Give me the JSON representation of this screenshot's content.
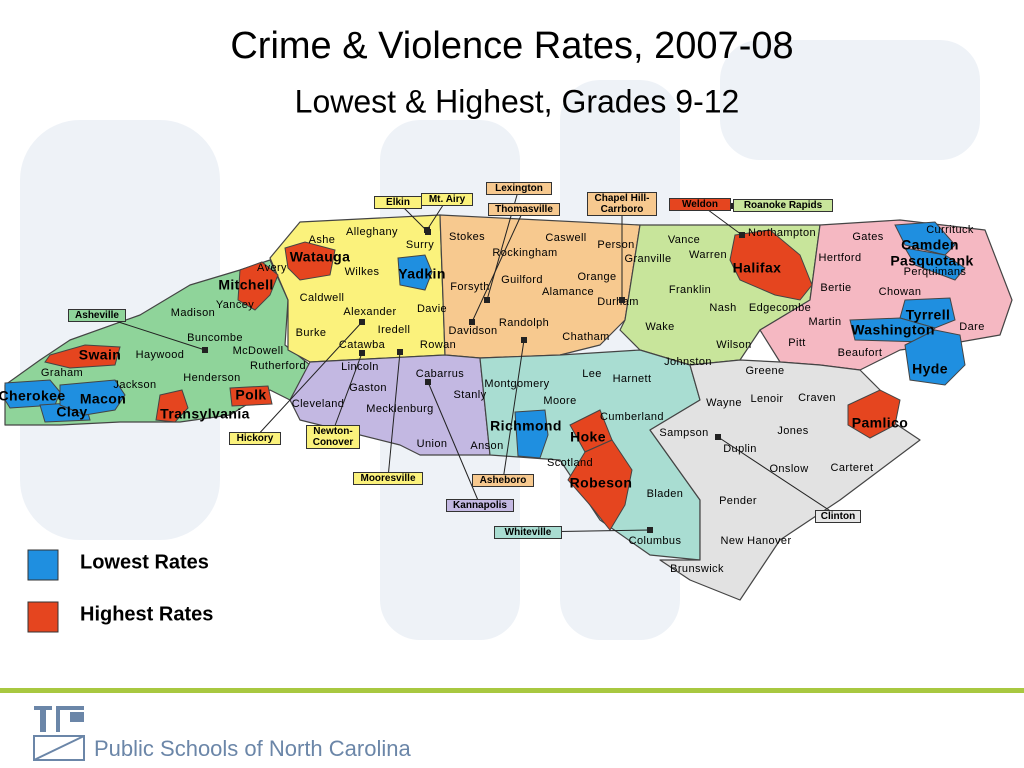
{
  "title": "Crime & Violence Rates, 2007-08",
  "subtitle": "Lowest & Highest, Grades 9-12",
  "legend": [
    {
      "label": "Lowest Rates",
      "color": "#1f8fe0"
    },
    {
      "label": "Highest Rates",
      "color": "#e5451f"
    }
  ],
  "counties": [
    {
      "name": "Cherokee",
      "color": "#1f8fe0"
    },
    {
      "name": "Clay",
      "color": "#1f8fe0"
    },
    {
      "name": "Macon",
      "color": "#1f8fe0"
    },
    {
      "name": "Swain",
      "color": "#e5451f"
    },
    {
      "name": "Transylvania",
      "color": "#e5451f"
    },
    {
      "name": "Polk",
      "color": "#e5451f"
    },
    {
      "name": "Mitchell",
      "color": "#e5451f"
    },
    {
      "name": "Watauga",
      "color": "#e5451f"
    },
    {
      "name": "Yadkin",
      "color": "#1f8fe0"
    },
    {
      "name": "Halifax",
      "color": "#e5451f"
    },
    {
      "name": "Camden",
      "color": "#1f8fe0"
    },
    {
      "name": "Pasquotank",
      "color": "#1f8fe0"
    },
    {
      "name": "Tyrrell",
      "color": "#1f8fe0"
    },
    {
      "name": "Washington",
      "color": "#1f8fe0"
    },
    {
      "name": "Hyde",
      "color": "#1f8fe0"
    },
    {
      "name": "Richmond",
      "color": "#1f8fe0"
    },
    {
      "name": "Hoke",
      "color": "#e5451f"
    },
    {
      "name": "Robeson",
      "color": "#e5451f"
    },
    {
      "name": "Pamlico",
      "color": "#e5451f"
    },
    {
      "name": "Ashe"
    },
    {
      "name": "Alleghany"
    },
    {
      "name": "Surry"
    },
    {
      "name": "Stokes"
    },
    {
      "name": "Rockingham"
    },
    {
      "name": "Caswell"
    },
    {
      "name": "Person"
    },
    {
      "name": "Vance"
    },
    {
      "name": "Warren"
    },
    {
      "name": "Northampton"
    },
    {
      "name": "Gates"
    },
    {
      "name": "Currituck"
    },
    {
      "name": "Hertford"
    },
    {
      "name": "Perquimans"
    },
    {
      "name": "Chowan"
    },
    {
      "name": "Bertie"
    },
    {
      "name": "Dare"
    },
    {
      "name": "Martin"
    },
    {
      "name": "Beaufort"
    },
    {
      "name": "Avery"
    },
    {
      "name": "Wilkes"
    },
    {
      "name": "Forsyth"
    },
    {
      "name": "Guilford"
    },
    {
      "name": "Alamance"
    },
    {
      "name": "Orange"
    },
    {
      "name": "Granville"
    },
    {
      "name": "Franklin"
    },
    {
      "name": "Durham"
    },
    {
      "name": "Nash"
    },
    {
      "name": "Edgecombe"
    },
    {
      "name": "Madison"
    },
    {
      "name": "Yancey"
    },
    {
      "name": "Caldwell"
    },
    {
      "name": "Alexander"
    },
    {
      "name": "Davie"
    },
    {
      "name": "Iredell"
    },
    {
      "name": "Burke"
    },
    {
      "name": "Catawba"
    },
    {
      "name": "Rowan"
    },
    {
      "name": "Davidson"
    },
    {
      "name": "Randolph"
    },
    {
      "name": "Chatham"
    },
    {
      "name": "Wake"
    },
    {
      "name": "Wilson"
    },
    {
      "name": "Pitt"
    },
    {
      "name": "Buncombe"
    },
    {
      "name": "McDowell"
    },
    {
      "name": "Haywood"
    },
    {
      "name": "Rutherford"
    },
    {
      "name": "Henderson"
    },
    {
      "name": "Graham"
    },
    {
      "name": "Jackson"
    },
    {
      "name": "Lincoln"
    },
    {
      "name": "Gaston"
    },
    {
      "name": "Cleveland"
    },
    {
      "name": "Mecklenburg"
    },
    {
      "name": "Cabarrus"
    },
    {
      "name": "Stanly"
    },
    {
      "name": "Montgomery"
    },
    {
      "name": "Lee"
    },
    {
      "name": "Harnett"
    },
    {
      "name": "Johnston"
    },
    {
      "name": "Greene"
    },
    {
      "name": "Wayne"
    },
    {
      "name": "Lenoir"
    },
    {
      "name": "Craven"
    },
    {
      "name": "Moore"
    },
    {
      "name": "Union"
    },
    {
      "name": "Anson"
    },
    {
      "name": "Cumberland"
    },
    {
      "name": "Sampson"
    },
    {
      "name": "Jones"
    },
    {
      "name": "Duplin"
    },
    {
      "name": "Onslow"
    },
    {
      "name": "Carteret"
    },
    {
      "name": "Scotland"
    },
    {
      "name": "Bladen"
    },
    {
      "name": "Pender"
    },
    {
      "name": "Columbus"
    },
    {
      "name": "New Hanover"
    },
    {
      "name": "Brunswick"
    }
  ],
  "districts": [
    "Elkin",
    "Mt. Airy",
    "Lexington",
    "Thomasville",
    "Chapel Hill-Carrboro",
    "Weldon",
    "Roanoke Rapids",
    "Asheville",
    "Hickory",
    "Newton-Conover",
    "Mooresville",
    "Asheboro",
    "Kannapolis",
    "Whiteville",
    "Clinton"
  ],
  "footer": "Public Schools of North Carolina"
}
